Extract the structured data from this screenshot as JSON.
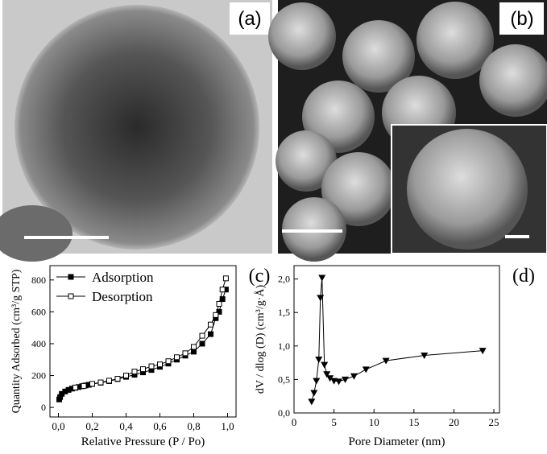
{
  "image_labels": [
    "(a)",
    "(b)"
  ],
  "chart_data": [
    {
      "type": "line",
      "annotation": "(c)",
      "x_label": "Relative Pressure (P / Po)",
      "y_label": "Quantity Adsorbed (cm³/g STP)",
      "xlim": [
        -0.05,
        1.05
      ],
      "ylim": [
        -60,
        890
      ],
      "xticks": [
        {
          "value": 0,
          "label": "0,0"
        },
        {
          "value": 0.2,
          "label": "0,2"
        },
        {
          "value": 0.4,
          "label": "0,4"
        },
        {
          "value": 0.6,
          "label": "0,6"
        },
        {
          "value": 0.8,
          "label": "0,8"
        },
        {
          "value": 1.0,
          "label": "1,0"
        }
      ],
      "yticks": [
        0,
        200,
        400,
        600,
        800
      ],
      "legend": "upper left",
      "series": [
        {
          "name": "Adsorption",
          "color": "#000000",
          "marker": "filled-square",
          "x": [
            0.005,
            0.01,
            0.02,
            0.04,
            0.06,
            0.08,
            0.1,
            0.12,
            0.14,
            0.16,
            0.18,
            0.2,
            0.25,
            0.3,
            0.35,
            0.4,
            0.45,
            0.5,
            0.55,
            0.6,
            0.65,
            0.7,
            0.75,
            0.8,
            0.85,
            0.9,
            0.93,
            0.95,
            0.97,
            0.99
          ],
          "values": [
            50,
            65,
            85,
            100,
            110,
            118,
            123,
            128,
            133,
            138,
            142,
            147,
            155,
            165,
            178,
            192,
            205,
            220,
            235,
            255,
            275,
            300,
            325,
            350,
            400,
            460,
            560,
            600,
            680,
            740
          ]
        },
        {
          "name": "Desorption",
          "color": "#000000",
          "marker": "open-square",
          "x": [
            0.99,
            0.97,
            0.95,
            0.93,
            0.9,
            0.85,
            0.8,
            0.75,
            0.7,
            0.65,
            0.6,
            0.55,
            0.5,
            0.45,
            0.4,
            0.35,
            0.3,
            0.25,
            0.2,
            0.15,
            0.1
          ],
          "values": [
            810,
            740,
            650,
            580,
            520,
            450,
            380,
            340,
            315,
            290,
            270,
            258,
            240,
            225,
            200,
            180,
            168,
            157,
            148,
            135,
            125
          ]
        }
      ]
    },
    {
      "type": "line",
      "annotation": "(d)",
      "x_label": "Pore Diameter (nm)",
      "y_label": "dV / dlog (D) (cm³/g·Å)",
      "xlim": [
        0,
        25.7
      ],
      "ylim": [
        0,
        2.2
      ],
      "xticks": [
        0,
        5,
        10,
        15,
        20,
        25
      ],
      "yticks": [
        {
          "value": 0,
          "label": "0,0"
        },
        {
          "value": 0.5,
          "label": "0,5"
        },
        {
          "value": 1.0,
          "label": "1,0"
        },
        {
          "value": 1.5,
          "label": "1,5"
        },
        {
          "value": 2.0,
          "label": "2,0"
        }
      ],
      "series": [
        {
          "name": null,
          "color": "#000000",
          "marker": "filled-triangle-down",
          "x": [
            2.2,
            2.5,
            2.8,
            3.1,
            3.3,
            3.5,
            3.8,
            4.1,
            4.5,
            5,
            5.6,
            6.4,
            7.5,
            9,
            11.5,
            16.3,
            23.6
          ],
          "values": [
            0.17,
            0.3,
            0.48,
            0.8,
            1.72,
            2.02,
            0.72,
            0.58,
            0.52,
            0.48,
            0.47,
            0.5,
            0.55,
            0.65,
            0.78,
            0.86,
            0.93
          ]
        }
      ]
    }
  ]
}
